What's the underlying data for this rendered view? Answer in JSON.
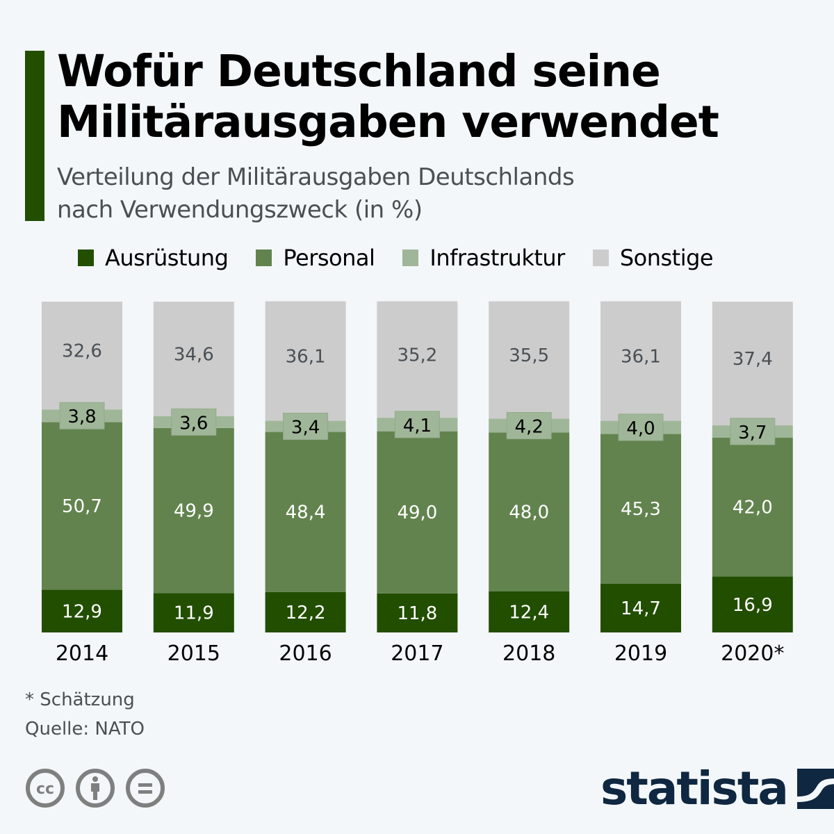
{
  "header": {
    "title_line1": "Wofür Deutschland seine",
    "title_line2": "Militärausgaben verwendet",
    "subtitle_line1": "Verteilung der Militärausgaben Deutschlands",
    "subtitle_line2": "nach Verwendungszweck (in %)"
  },
  "colors": {
    "accent": "#224e00",
    "ausruestung": "#224e00",
    "personal": "#62834e",
    "infrastruktur": "#a0b698",
    "sonstige": "#cccccc",
    "background": "#f3f7fa",
    "logo": "#0f2740"
  },
  "legend": [
    {
      "label": "Ausrüstung",
      "color": "#224e00"
    },
    {
      "label": "Personal",
      "color": "#62834e"
    },
    {
      "label": "Infrastruktur",
      "color": "#a0b698"
    },
    {
      "label": "Sonstige",
      "color": "#cccccc"
    }
  ],
  "chart_data": {
    "type": "bar",
    "stacked": true,
    "title": "Wofür Deutschland seine Militärausgaben verwendet",
    "subtitle": "Verteilung der Militärausgaben Deutschlands nach Verwendungszweck (in %)",
    "xlabel": "",
    "ylabel": "",
    "ylim": [
      0,
      100
    ],
    "grid": false,
    "legend_position": "top",
    "categories": [
      "2014",
      "2015",
      "2016",
      "2017",
      "2018",
      "2019",
      "2020*"
    ],
    "series": [
      {
        "name": "Ausrüstung",
        "values": [
          12.9,
          11.9,
          12.2,
          11.8,
          12.4,
          14.7,
          16.9
        ],
        "labels": [
          "12,9",
          "11,9",
          "12,2",
          "11,8",
          "12,4",
          "14,7",
          "16,9"
        ]
      },
      {
        "name": "Personal",
        "values": [
          50.7,
          49.9,
          48.4,
          49.0,
          48.0,
          45.3,
          42.0
        ],
        "labels": [
          "50,7",
          "49,9",
          "48,4",
          "49,0",
          "48,0",
          "45,3",
          "42,0"
        ]
      },
      {
        "name": "Infrastruktur",
        "values": [
          3.8,
          3.6,
          3.4,
          4.1,
          4.2,
          4.0,
          3.7
        ],
        "labels": [
          "3,8",
          "3,6",
          "3,4",
          "4,1",
          "4,2",
          "4,0",
          "3,7"
        ]
      },
      {
        "name": "Sonstige",
        "values": [
          32.6,
          34.6,
          36.1,
          35.2,
          35.5,
          36.1,
          37.4
        ],
        "labels": [
          "32,6",
          "34,6",
          "36,1",
          "35,2",
          "35,5",
          "36,1",
          "37,4"
        ]
      }
    ]
  },
  "footer": {
    "note": "* Schätzung",
    "source": "Quelle: NATO",
    "license_icons": [
      "cc-icon",
      "attribution-icon",
      "no-derivatives-icon"
    ],
    "logo_text": "statista"
  }
}
